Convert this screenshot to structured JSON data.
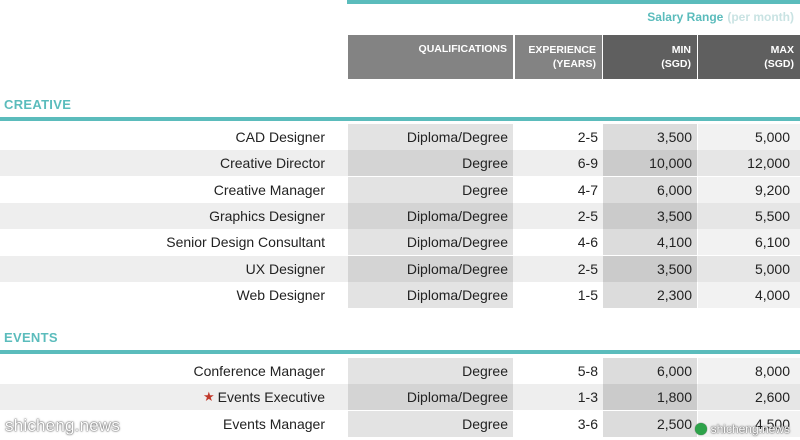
{
  "header": {
    "salary_range_label": "Salary Range",
    "salary_range_note": "(per month)",
    "columns": {
      "qualifications": "QUALIFICATIONS",
      "experience": "EXPERIENCE\n(YEARS)",
      "min": "MIN\n(SGD)",
      "max": "MAX\n(SGD)"
    }
  },
  "colors": {
    "accent_teal": "#5bbcbc",
    "header_gray": "#838383",
    "header_dark": "#5f5f5f",
    "star_red": "#c0392b"
  },
  "sections": [
    {
      "title": "CREATIVE",
      "rows": [
        {
          "title": "CAD Designer",
          "qualifications": "Diploma/Degree",
          "experience": "2-5",
          "min": "3,500",
          "max": "5,000"
        },
        {
          "title": "Creative Director",
          "qualifications": "Degree",
          "experience": "6-9",
          "min": "10,000",
          "max": "12,000"
        },
        {
          "title": "Creative Manager",
          "qualifications": "Degree",
          "experience": "4-7",
          "min": "6,000",
          "max": "9,200"
        },
        {
          "title": "Graphics Designer",
          "qualifications": "Diploma/Degree",
          "experience": "2-5",
          "min": "3,500",
          "max": "5,500"
        },
        {
          "title": "Senior Design Consultant",
          "qualifications": "Diploma/Degree",
          "experience": "4-6",
          "min": "4,100",
          "max": "6,100"
        },
        {
          "title": "UX Designer",
          "qualifications": "Diploma/Degree",
          "experience": "2-5",
          "min": "3,500",
          "max": "5,000"
        },
        {
          "title": "Web Designer",
          "qualifications": "Diploma/Degree",
          "experience": "1-5",
          "min": "2,300",
          "max": "4,000"
        }
      ]
    },
    {
      "title": "EVENTS",
      "rows": [
        {
          "title": "Conference Manager",
          "qualifications": "Degree",
          "experience": "5-8",
          "min": "6,000",
          "max": "8,000"
        },
        {
          "title": "Events Executive",
          "qualifications": "Diploma/Degree",
          "experience": "1-3",
          "min": "1,800",
          "max": "2,600",
          "icon": "star-icon"
        },
        {
          "title": "Events Manager",
          "qualifications": "Degree",
          "experience": "3-6",
          "min": "2,500",
          "max": "4,500"
        }
      ]
    }
  ],
  "watermarks": {
    "left": "shicheng.news",
    "right": "shicheng.news"
  }
}
